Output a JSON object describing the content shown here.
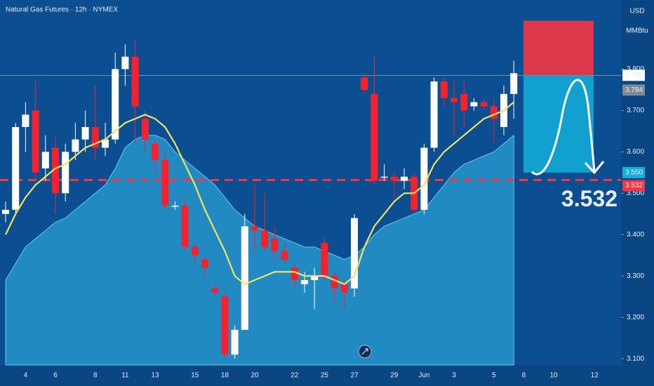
{
  "chart_data": {
    "type": "candlestick",
    "title": "Natural Gas Futures · 12h · NYMEX",
    "currency": "USD",
    "unit": "MMBtu",
    "categories": [
      null,
      null,
      "4",
      null,
      null,
      "6",
      null,
      null,
      null,
      "8",
      null,
      null,
      "11",
      null,
      null,
      "13",
      null,
      null,
      null,
      "15",
      null,
      null,
      "18",
      null,
      null,
      "20",
      null,
      null,
      null,
      "22",
      null,
      null,
      "25",
      null,
      null,
      "27",
      null,
      null,
      null,
      "29",
      null,
      null,
      "Jun",
      null,
      null,
      "3",
      null,
      null,
      null,
      "5",
      null,
      null
    ],
    "future_categories": [
      "8",
      "10",
      "12"
    ],
    "open": [
      3.45,
      3.46,
      3.66,
      3.7,
      3.56,
      3.61,
      3.5,
      3.6,
      3.63,
      3.66,
      3.61,
      3.63,
      3.8,
      3.83,
      3.68,
      3.62,
      3.58,
      3.47,
      3.47,
      3.37,
      3.34,
      3.27,
      3.25,
      3.11,
      3.17,
      3.42,
      3.41,
      3.39,
      3.36,
      3.32,
      3.28,
      3.29,
      3.38,
      3.3,
      3.28,
      3.27,
      3.78,
      3.74,
      3.54,
      3.54,
      3.53,
      3.54,
      3.46,
      3.61,
      3.77,
      3.73,
      3.74,
      3.71,
      3.72,
      3.71,
      3.66,
      3.74
    ],
    "close": [
      3.46,
      3.66,
      3.69,
      3.55,
      3.6,
      3.5,
      3.6,
      3.63,
      3.66,
      3.61,
      3.63,
      3.8,
      3.83,
      3.71,
      3.63,
      3.58,
      3.47,
      3.47,
      3.37,
      3.35,
      3.32,
      3.26,
      3.11,
      3.17,
      3.42,
      3.41,
      3.37,
      3.36,
      3.34,
      3.29,
      3.29,
      3.3,
      3.3,
      3.27,
      3.26,
      3.44,
      3.75,
      3.53,
      3.54,
      3.53,
      3.54,
      3.46,
      3.61,
      3.77,
      3.73,
      3.72,
      3.7,
      3.72,
      3.71,
      3.68,
      3.74,
      3.79
    ],
    "high": [
      3.48,
      3.67,
      3.72,
      3.77,
      3.64,
      3.64,
      3.62,
      3.67,
      3.7,
      3.76,
      3.67,
      3.84,
      3.86,
      3.87,
      3.7,
      3.63,
      3.6,
      3.48,
      3.48,
      3.38,
      3.35,
      3.28,
      3.26,
      3.18,
      3.45,
      3.52,
      3.5,
      3.42,
      3.38,
      3.33,
      3.31,
      3.32,
      3.39,
      3.31,
      3.29,
      3.45,
      3.79,
      3.83,
      3.57,
      3.55,
      3.56,
      3.55,
      3.62,
      3.78,
      3.78,
      3.77,
      3.77,
      3.73,
      3.73,
      3.73,
      3.76,
      3.82
    ],
    "low": [
      3.43,
      3.45,
      3.6,
      3.53,
      3.53,
      3.45,
      3.48,
      3.58,
      3.6,
      3.58,
      3.59,
      3.62,
      3.76,
      3.62,
      3.6,
      3.55,
      3.46,
      3.46,
      3.36,
      3.33,
      3.3,
      3.25,
      3.1,
      3.1,
      3.17,
      3.36,
      3.36,
      3.34,
      3.33,
      3.27,
      3.26,
      3.22,
      3.29,
      3.24,
      3.22,
      3.25,
      3.74,
      3.52,
      3.53,
      3.49,
      3.51,
      3.45,
      3.45,
      3.6,
      3.71,
      3.64,
      3.66,
      3.7,
      3.7,
      3.62,
      3.64,
      3.68
    ],
    "up_color": "#ffffff",
    "down_color": "#f5222d",
    "ma": {
      "color": "#f2e35a",
      "values": [
        3.4,
        3.45,
        3.49,
        3.52,
        3.54,
        3.56,
        3.57,
        3.59,
        3.61,
        3.62,
        3.63,
        3.65,
        3.67,
        3.68,
        3.69,
        3.68,
        3.66,
        3.62,
        3.57,
        3.52,
        3.46,
        3.41,
        3.36,
        3.3,
        3.28,
        3.29,
        3.3,
        3.31,
        3.31,
        3.31,
        3.3,
        3.3,
        3.3,
        3.29,
        3.28,
        3.3,
        3.37,
        3.42,
        3.45,
        3.48,
        3.5,
        3.5,
        3.52,
        3.57,
        3.6,
        3.62,
        3.64,
        3.66,
        3.68,
        3.69,
        3.7,
        3.72
      ]
    },
    "area": {
      "color": "#2b9fd3",
      "values": [
        3.29,
        3.33,
        3.37,
        3.39,
        3.41,
        3.43,
        3.44,
        3.46,
        3.48,
        3.5,
        3.52,
        3.56,
        3.61,
        3.63,
        3.64,
        3.64,
        3.63,
        3.6,
        3.58,
        3.56,
        3.54,
        3.52,
        3.49,
        3.46,
        3.44,
        3.42,
        3.41,
        3.4,
        3.39,
        3.38,
        3.37,
        3.37,
        3.36,
        3.35,
        3.34,
        3.35,
        3.37,
        3.4,
        3.42,
        3.43,
        3.44,
        3.45,
        3.46,
        3.49,
        3.52,
        3.55,
        3.57,
        3.58,
        3.59,
        3.6,
        3.62,
        3.64
      ]
    },
    "ylim": [
      3.085,
      3.967
    ],
    "yticks": [
      {
        "value": 3.1,
        "label": "3.100"
      },
      {
        "value": 3.2,
        "label": "3.200"
      },
      {
        "value": 3.3,
        "label": "3.300"
      },
      {
        "value": 3.4,
        "label": "3.400"
      },
      {
        "value": 3.5,
        "label": "3.500"
      },
      {
        "value": 3.6,
        "label": "3.600"
      },
      {
        "value": 3.7,
        "label": "3.700"
      },
      {
        "value": 3.8,
        "label": "3.800"
      }
    ],
    "last_price": 3.785,
    "bid_price": 3.784,
    "price_line": 3.532,
    "position": {
      "stop": 3.917,
      "entry": 3.785,
      "target": {
        "value": 3.55,
        "label": "3.550"
      }
    }
  }
}
